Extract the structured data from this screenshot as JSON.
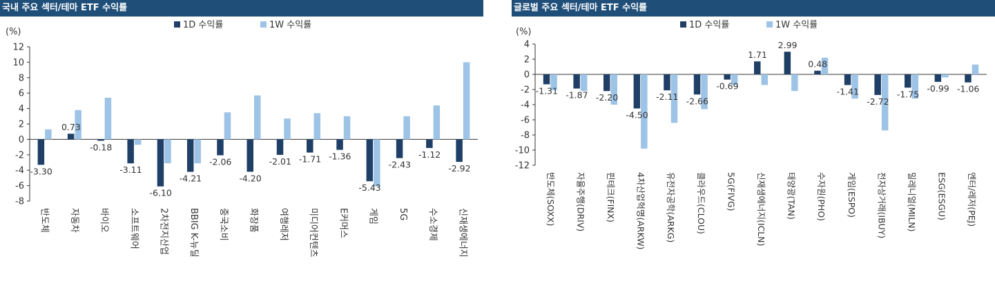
{
  "colors": {
    "header_bg": "#1f4e79",
    "series_1d": "#1f3f66",
    "series_1w": "#9dc3e6",
    "axis": "#333333"
  },
  "chart_data": [
    {
      "type": "bar",
      "title": "국내 주요 섹터/테마 ETF 수익률",
      "unit_label": "(%)",
      "ylim": [
        -8,
        12
      ],
      "yticks": [
        -8,
        -6,
        -4,
        -2,
        0,
        2,
        4,
        6,
        8,
        10,
        12
      ],
      "grid": false,
      "legend_position": "top-center",
      "categories": [
        "반도체",
        "자동차",
        "바이오",
        "소프트웨어",
        "2차전지산업",
        "BBIG K-뉴딜",
        "중국소비",
        "화장품",
        "여행레저",
        "미디어컨텐츠",
        "E커머스",
        "게임",
        "5G",
        "수소경제",
        "신재생에너지"
      ],
      "series": [
        {
          "name": "1D 수익률",
          "values": [
            -3.3,
            0.73,
            -0.18,
            -3.11,
            -6.1,
            -4.21,
            -2.06,
            -4.2,
            -2.01,
            -1.71,
            -1.36,
            -5.43,
            -2.43,
            -1.12,
            -2.92
          ]
        },
        {
          "name": "1W 수익률",
          "values": [
            1.3,
            3.8,
            5.4,
            -0.7,
            -3.1,
            -3.1,
            3.5,
            5.7,
            2.7,
            3.4,
            3.0,
            -6.1,
            3.0,
            4.4,
            10.0
          ]
        }
      ],
      "data_labels": [
        "-3.30",
        "0.73",
        "-0.18",
        "-3.11",
        "-6.10",
        "-4.21",
        "-2.06",
        "-4.20",
        "-2.01",
        "-1.71",
        "-1.36",
        "-5.43",
        "-2.43",
        "-1.12",
        "-2.92"
      ]
    },
    {
      "type": "bar",
      "title": "글로벌 주요 섹터/테마 ETF 수익률",
      "unit_label": "(%)",
      "ylim": [
        -12,
        4
      ],
      "yticks": [
        -12,
        -10,
        -8,
        -6,
        -4,
        -2,
        0,
        2,
        4
      ],
      "grid": false,
      "legend_position": "top-center",
      "categories": [
        "반도체(SOXX)",
        "자율주행(DRIV)",
        "핀테크(FINX)",
        "4차산업혁명(ARKW)",
        "유전자공학(ARKG)",
        "클라우드(CLOU)",
        "5G(FIVG)",
        "신재생에너지(ICLN)",
        "태양광(TAN)",
        "수자원(PHO)",
        "게임(ESPO)",
        "전자상거래(IBUY)",
        "밀레니얼(MILN)",
        "ESG(ESGU)",
        "엔터/레저(PEJ)"
      ],
      "series": [
        {
          "name": "1D 수익률",
          "values": [
            -1.31,
            -1.87,
            -2.2,
            -4.5,
            -2.11,
            -2.66,
            -0.69,
            1.71,
            2.99,
            0.48,
            -1.41,
            -2.72,
            -1.75,
            -0.99,
            -1.06
          ]
        },
        {
          "name": "1W 수익률",
          "values": [
            -2.1,
            -2.2,
            -4.0,
            -9.8,
            -6.4,
            -4.6,
            -1.4,
            -1.4,
            -2.2,
            2.2,
            -3.2,
            -7.4,
            -3.2,
            -0.4,
            1.3
          ]
        }
      ],
      "data_labels": [
        "-1.31",
        "-1.87",
        "-2.20",
        "-4.50",
        "-2.11",
        "-2.66",
        "-0.69",
        "1.71",
        "2.99",
        "0.48",
        "-1.41",
        "-2.72",
        "-1.75",
        "-0.99",
        "-1.06"
      ]
    }
  ]
}
